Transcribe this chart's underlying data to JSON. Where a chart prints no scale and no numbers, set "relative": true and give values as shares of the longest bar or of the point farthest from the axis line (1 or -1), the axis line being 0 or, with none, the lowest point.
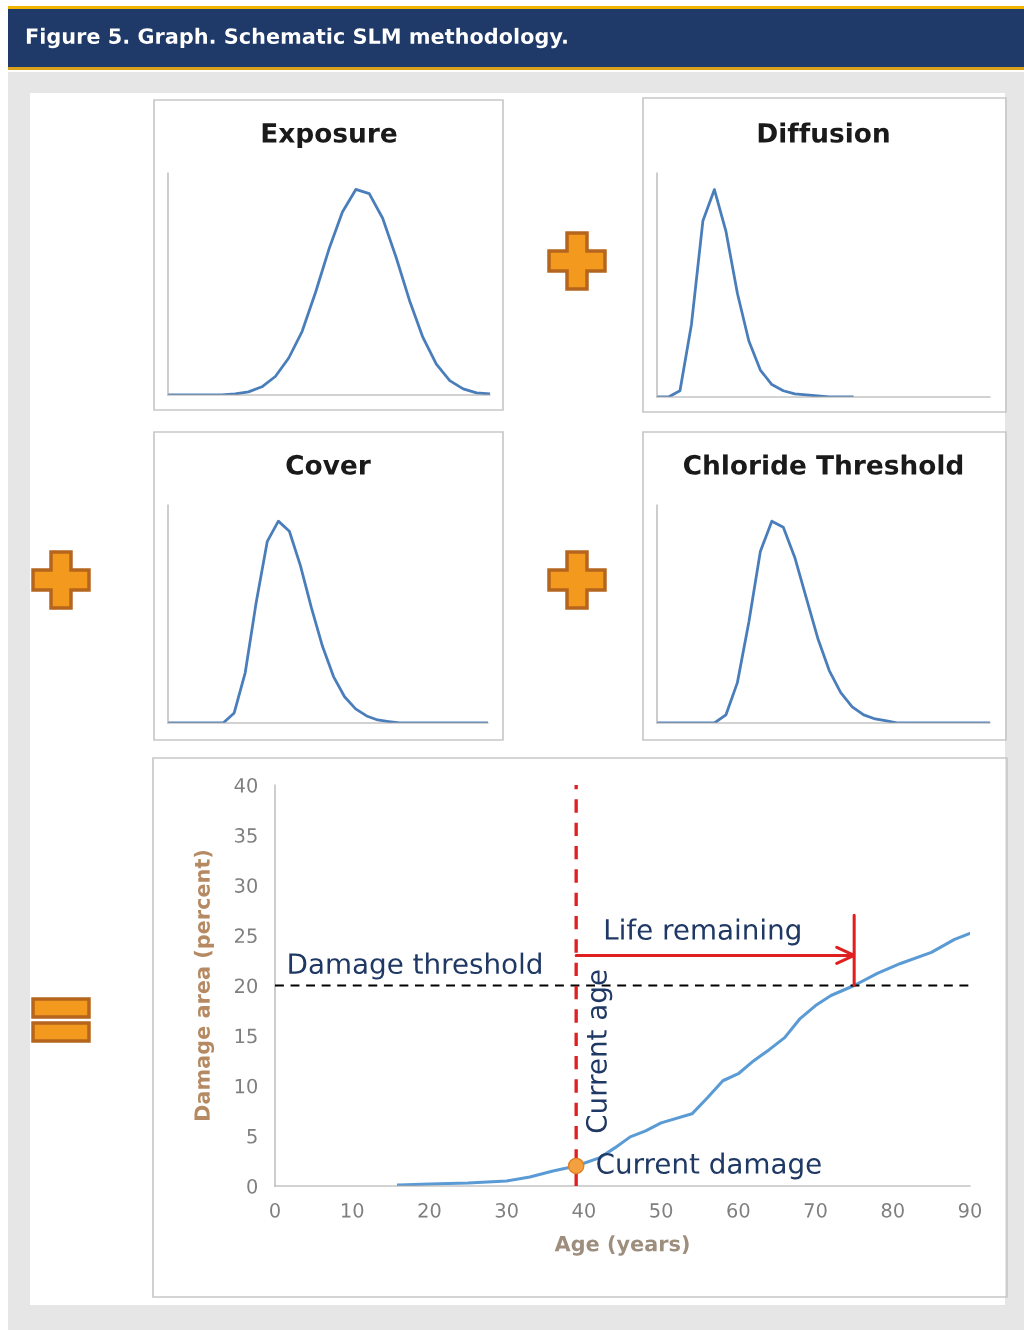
{
  "chart_data": [
    {
      "type": "line",
      "title": "Exposure",
      "relative": true,
      "color": "#4a7ebb",
      "categories": [
        null,
        null,
        null,
        null,
        null,
        null,
        null,
        null,
        null,
        null,
        null,
        null,
        null,
        null,
        null,
        null,
        null,
        null,
        null,
        null,
        null,
        null,
        null,
        null,
        null
      ],
      "values": [
        0,
        0,
        0,
        0,
        0,
        0.005,
        0.015,
        0.04,
        0.09,
        0.18,
        0.31,
        0.5,
        0.71,
        0.89,
        1.0,
        0.98,
        0.86,
        0.67,
        0.46,
        0.28,
        0.15,
        0.07,
        0.03,
        0.01,
        0.005
      ]
    },
    {
      "type": "line",
      "title": "Diffusion",
      "relative": true,
      "color": "#4a7ebb",
      "categories": [
        null,
        null,
        null,
        null,
        null,
        null,
        null,
        null,
        null,
        null,
        null,
        null,
        null,
        null,
        null,
        null,
        null,
        null,
        null,
        null,
        null,
        null,
        null,
        null,
        null,
        null,
        null,
        null,
        null,
        null
      ],
      "values": [
        0,
        0,
        0.03,
        0.35,
        0.85,
        1.0,
        0.8,
        0.5,
        0.27,
        0.13,
        0.06,
        0.03,
        0.015,
        0.01,
        0.005,
        0,
        0,
        0,
        null,
        null,
        null,
        null,
        null,
        null,
        null,
        null,
        null,
        null,
        null,
        null
      ]
    },
    {
      "type": "line",
      "title": "Cover",
      "relative": true,
      "color": "#4a7ebb",
      "categories": [
        null,
        null,
        null,
        null,
        null,
        null,
        null,
        null,
        null,
        null,
        null,
        null,
        null,
        null,
        null,
        null,
        null,
        null,
        null,
        null,
        null,
        null,
        null,
        null,
        null,
        null,
        null,
        null,
        null,
        null
      ],
      "values": [
        0,
        0,
        0,
        0,
        0,
        0,
        0.05,
        0.25,
        0.6,
        0.9,
        1.0,
        0.95,
        0.78,
        0.57,
        0.38,
        0.23,
        0.13,
        0.07,
        0.035,
        0.015,
        0.007,
        0,
        0,
        0,
        0,
        0,
        0,
        0,
        0,
        0
      ]
    },
    {
      "type": "line",
      "title": "Chloride Threshold",
      "relative": true,
      "color": "#4a7ebb",
      "categories": [
        null,
        null,
        null,
        null,
        null,
        null,
        null,
        null,
        null,
        null,
        null,
        null,
        null,
        null,
        null,
        null,
        null,
        null,
        null,
        null,
        null,
        null,
        null,
        null,
        null,
        null,
        null,
        null,
        null,
        null
      ],
      "values": [
        0,
        0,
        0,
        0,
        0,
        0,
        0.04,
        0.2,
        0.5,
        0.85,
        1.0,
        0.97,
        0.82,
        0.62,
        0.42,
        0.26,
        0.15,
        0.08,
        0.04,
        0.02,
        0.01,
        0,
        0,
        0,
        0,
        0,
        0,
        0,
        0,
        0
      ]
    },
    {
      "type": "line",
      "xlabel": "Age (years)",
      "ylabel": "Damage area (percent)",
      "xlim": [
        0,
        90
      ],
      "xticks": [
        0,
        10,
        20,
        30,
        40,
        50,
        60,
        70,
        80,
        90
      ],
      "ylim": [
        0,
        40
      ],
      "yticks": [
        0,
        5,
        10,
        15,
        20,
        25,
        30,
        35,
        40
      ],
      "series": [
        {
          "type": "line",
          "color": "#5b9bd5",
          "x": [
            16,
            20,
            25,
            30,
            33,
            36,
            39,
            42,
            44,
            46,
            48,
            50,
            54,
            56,
            58,
            60,
            62,
            64,
            66,
            68,
            70,
            72,
            75,
            78,
            81,
            85,
            88,
            90
          ],
          "values": [
            0.1,
            0.2,
            0.3,
            0.5,
            0.9,
            1.5,
            2.0,
            2.8,
            3.8,
            4.9,
            5.5,
            6.3,
            7.2,
            8.8,
            10.5,
            11.2,
            12.5,
            13.6,
            14.8,
            16.7,
            18.0,
            19.0,
            20.0,
            21.2,
            22.2,
            23.3,
            24.6,
            25.2
          ]
        },
        {
          "type": "scatter",
          "color": "#f5a040",
          "marker": "circle",
          "x": [
            39
          ],
          "values": [
            2.0
          ]
        }
      ],
      "ref_lines": [
        {
          "axis": "y",
          "value": 20,
          "label": "Damage threshold",
          "color": "#000000",
          "line_style": "dashed"
        },
        {
          "axis": "x",
          "value": 39,
          "label": "Current age",
          "color": "#e02020",
          "line_style": "dashed"
        }
      ],
      "annotations": [
        "Figure 5. Graph. Schematic SLM methodology.",
        {
          "text": "Current damage",
          "x": 39,
          "y": 2.0
        },
        "Life remaining"
      ]
    }
  ]
}
